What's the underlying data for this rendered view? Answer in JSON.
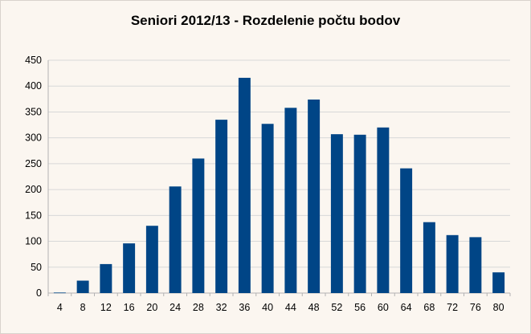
{
  "chart_data": {
    "type": "bar",
    "title": "Seniori 2012/13 - Rozdelenie počtu bodov",
    "xlabel": "",
    "ylabel": "",
    "categories": [
      "4",
      "8",
      "12",
      "16",
      "20",
      "24",
      "28",
      "32",
      "36",
      "40",
      "44",
      "48",
      "52",
      "56",
      "60",
      "64",
      "68",
      "72",
      "76",
      "80"
    ],
    "values": [
      1,
      24,
      56,
      96,
      130,
      206,
      260,
      335,
      416,
      327,
      358,
      374,
      307,
      306,
      320,
      241,
      137,
      112,
      108,
      40
    ],
    "ylim": [
      0,
      450
    ],
    "yticks": [
      "0",
      "50",
      "100",
      "150",
      "200",
      "250",
      "300",
      "350",
      "400",
      "450"
    ],
    "bar_color": "#004586",
    "grid": true,
    "legend": "none"
  }
}
